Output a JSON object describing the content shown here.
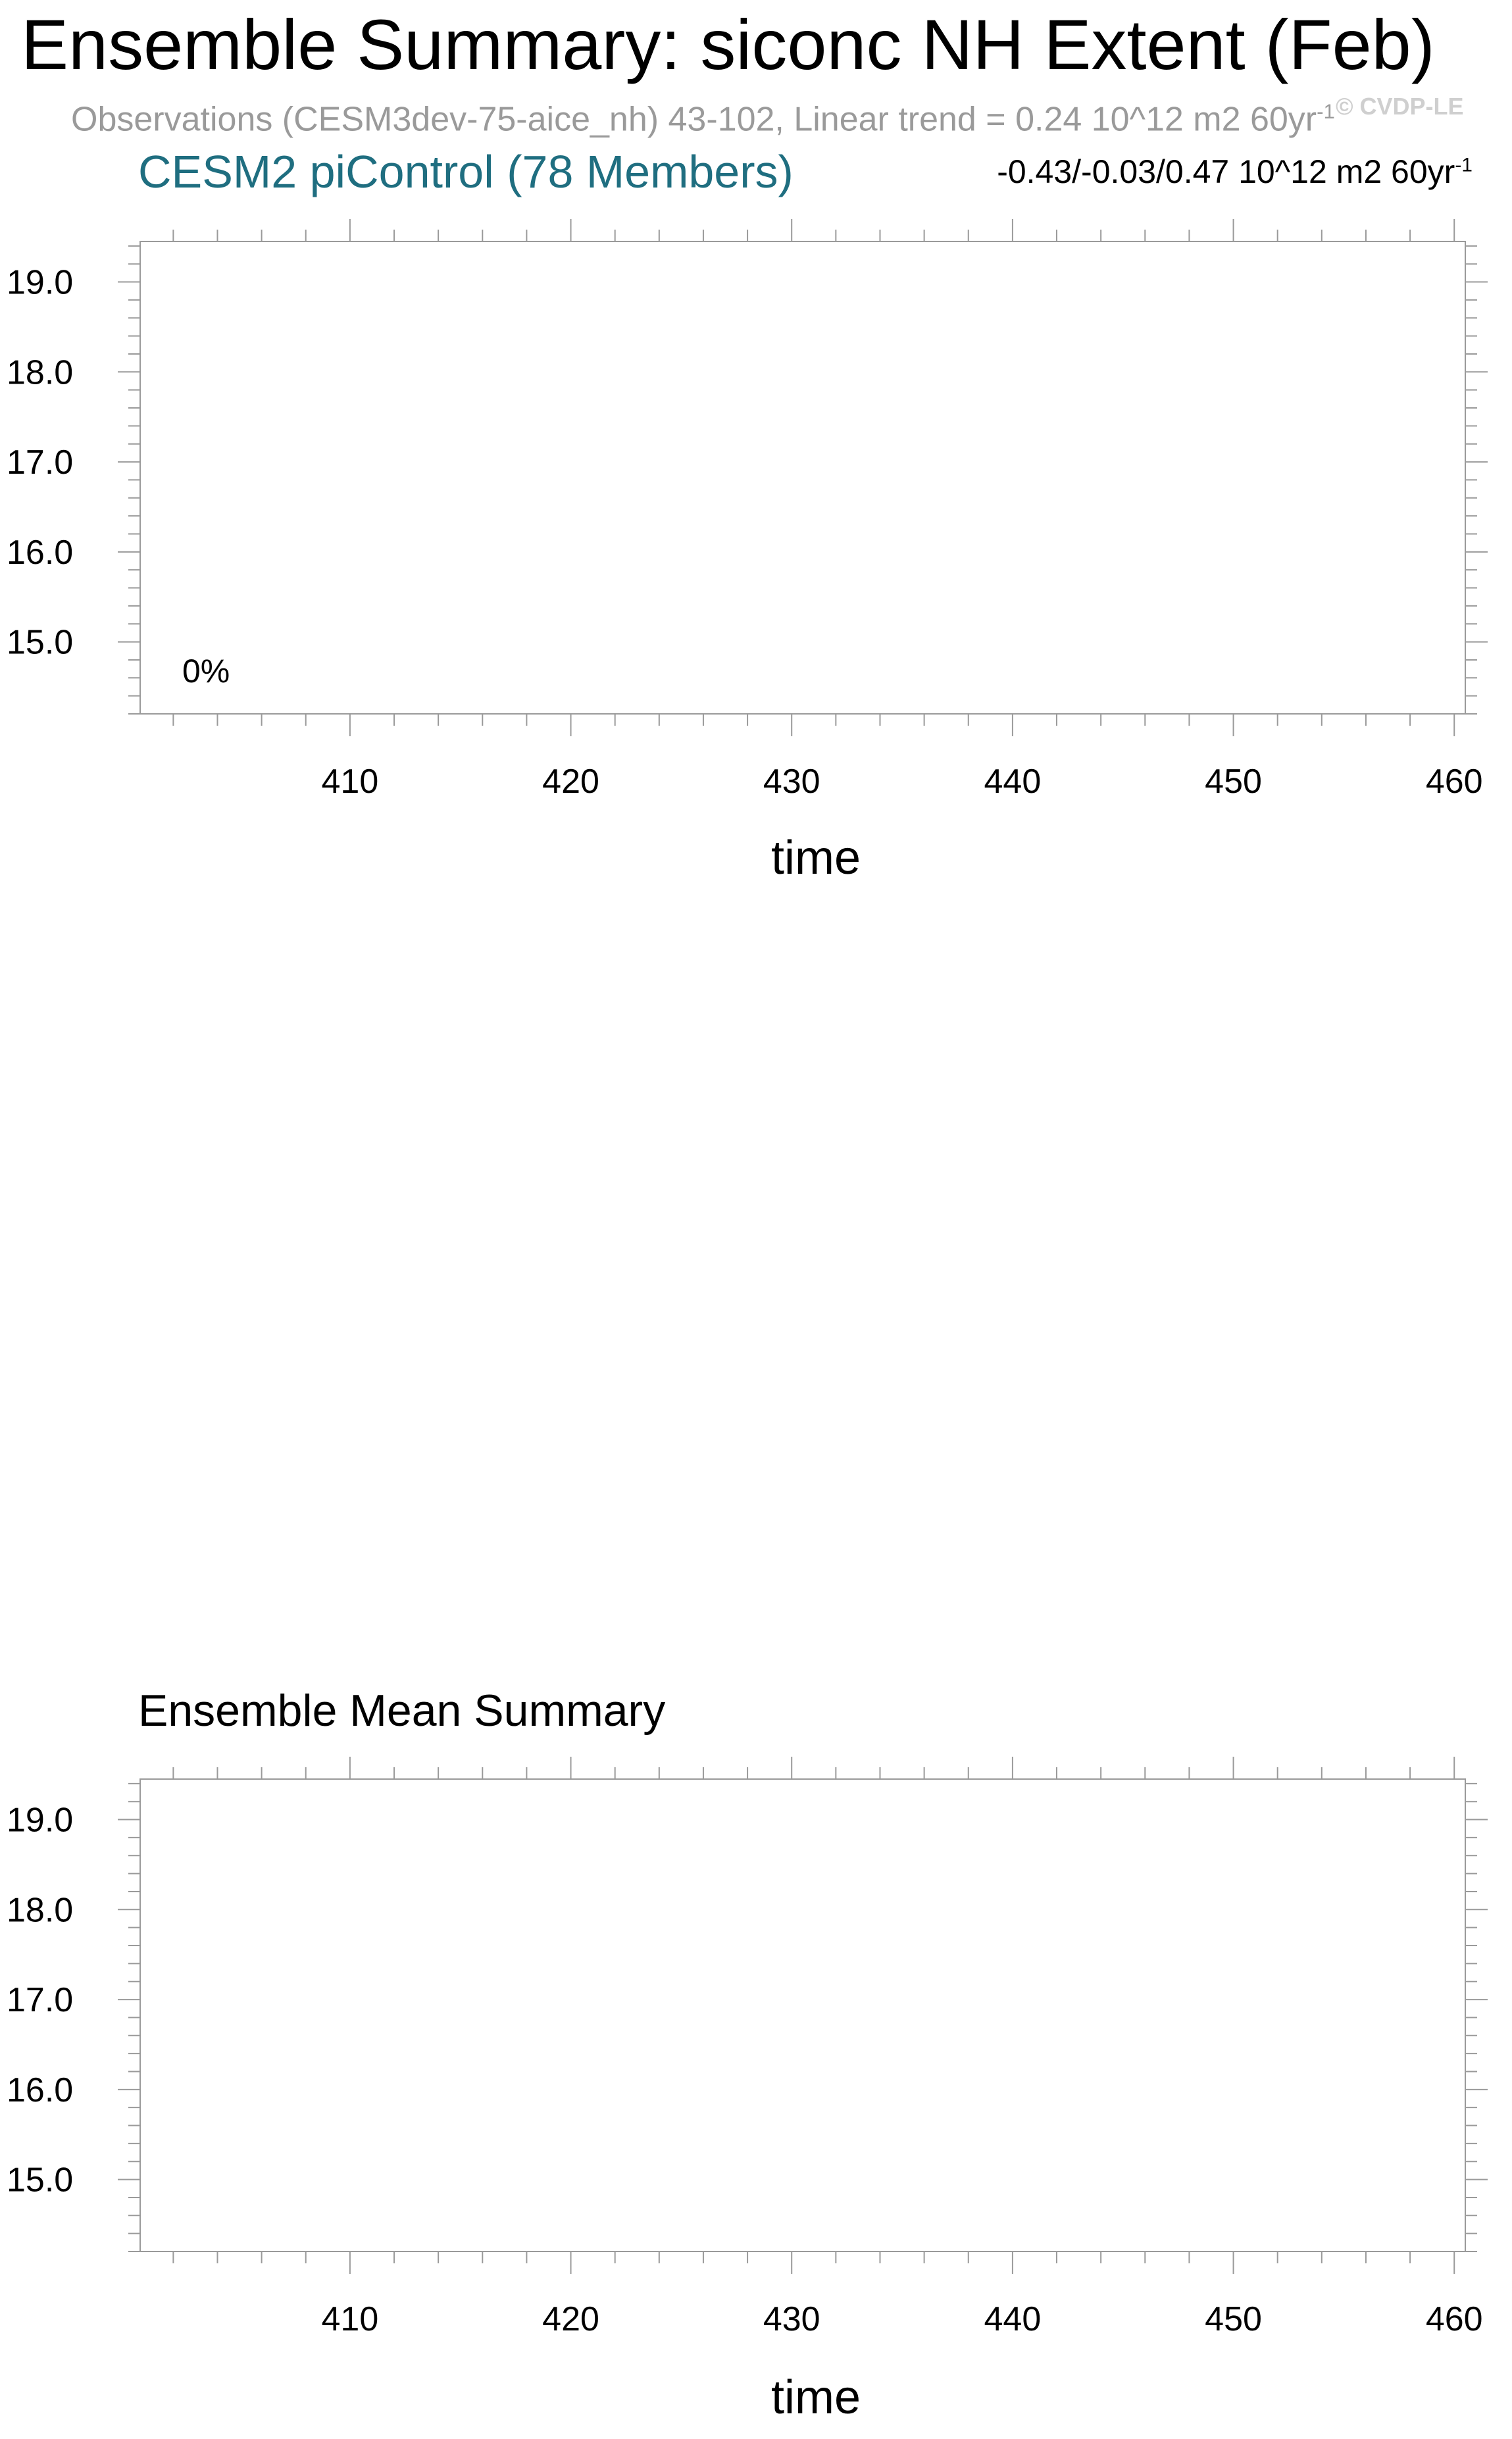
{
  "figure": {
    "title": "Ensemble Summary: siconc NH Extent (Feb)",
    "subtitle": "Observations (CESM3dev-75-aice_nh) 43-102, Linear trend = 0.24 10^12 m2 60yr",
    "subtitle_sup": "-1",
    "watermark": "© CVDP-LE"
  },
  "panels": {
    "top": {
      "title": "CESM2 piControl (78 Members)",
      "trend_stats": "-0.43/-0.03/0.47 10^12 m2 60yr",
      "trend_stats_sup": "-1",
      "annotation": "0%",
      "xlabel": "time"
    },
    "bottom": {
      "title": "Ensemble Mean Summary",
      "xlabel": "time"
    }
  },
  "chart_data": [
    {
      "type": "line",
      "title": "CESM2 piControl (78 Members)",
      "xlabel": "time",
      "ylabel": "",
      "xlim": [
        400.5,
        460.5
      ],
      "ylim": [
        14.2,
        19.45
      ],
      "xticks": [
        410,
        420,
        430,
        440,
        450,
        460
      ],
      "xtick_labels": [
        "410",
        "420",
        "430",
        "440",
        "450",
        "460"
      ],
      "yticks": [
        15.0,
        16.0,
        17.0,
        18.0,
        19.0
      ],
      "ytick_labels": [
        "15.0",
        "16.0",
        "17.0",
        "18.0",
        "19.0"
      ],
      "annotations": [
        "0%"
      ],
      "series": []
    },
    {
      "type": "line",
      "title": "Ensemble Mean Summary",
      "xlabel": "time",
      "ylabel": "",
      "xlim": [
        400.5,
        460.5
      ],
      "ylim": [
        14.2,
        19.45
      ],
      "xticks": [
        410,
        420,
        430,
        440,
        450,
        460
      ],
      "xtick_labels": [
        "410",
        "420",
        "430",
        "440",
        "450",
        "460"
      ],
      "yticks": [
        15.0,
        16.0,
        17.0,
        18.0,
        19.0
      ],
      "ytick_labels": [
        "15.0",
        "16.0",
        "17.0",
        "18.0",
        "19.0"
      ],
      "series": []
    }
  ]
}
